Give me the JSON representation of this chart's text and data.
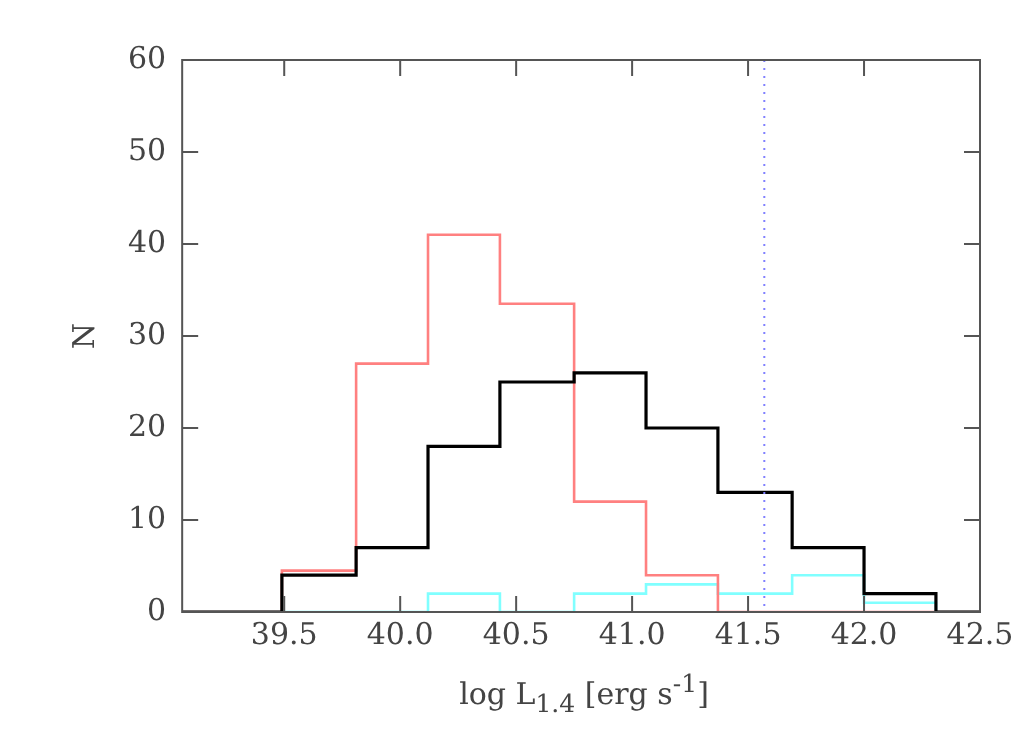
{
  "chart_data": {
    "type": "histogram",
    "xlabel": "log L$_{1.4}$  [erg s$^{-1}$]",
    "ylabel": "N",
    "bins": [
      39.06,
      39.49,
      39.81,
      40.12,
      40.43,
      40.75,
      41.06,
      41.37,
      41.69,
      42.0,
      42.31,
      42.5
    ],
    "series": [
      {
        "color": "#000000",
        "values": [
          0,
          4,
          7,
          18,
          25,
          26,
          20,
          13,
          7,
          2,
          0
        ]
      },
      {
        "color": "#ff8080",
        "values": [
          0,
          4.5,
          27,
          41,
          33.5,
          12,
          4,
          0,
          0,
          0,
          0
        ]
      },
      {
        "color": "#80ffff",
        "values": [
          0,
          0,
          0,
          2,
          0,
          2,
          3,
          2,
          4,
          1,
          0
        ]
      }
    ],
    "xlim": [
      39.06,
      42.5
    ],
    "xticks": [
      39.5,
      {
        "value": 40,
        "label": "40.0"
      },
      40.5,
      {
        "value": 41,
        "label": "41.0"
      },
      41.5,
      {
        "value": 42,
        "label": "42.0"
      },
      42.5
    ],
    "ylim": [
      0,
      60
    ],
    "yticks": [
      0,
      10,
      20,
      30,
      40,
      50,
      60
    ],
    "ref_lines": [
      {
        "axis": "x",
        "value": 41.57,
        "color": "#8080ff",
        "line_style": "dotted"
      }
    ],
    "grid": false,
    "legend": false
  }
}
